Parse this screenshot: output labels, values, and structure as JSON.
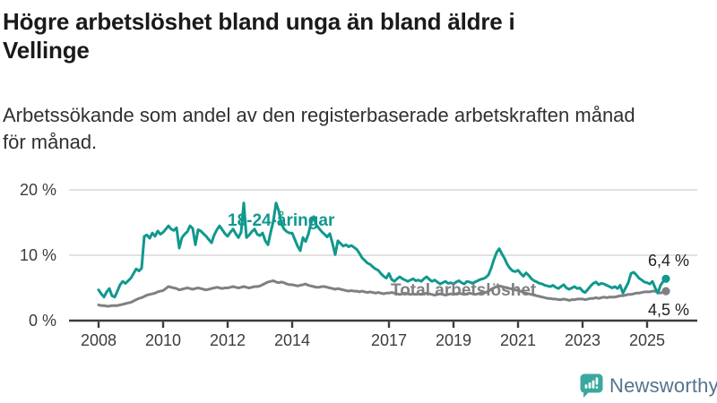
{
  "header": {
    "title": "Högre arbetslöshet bland unga än bland äldre i\nVellinge",
    "subtitle": "Arbetssökande som andel av den registerbaserade arbetskraften månad\nför månad."
  },
  "chart_data": {
    "type": "line",
    "x_start": {
      "year": 2008,
      "month": 1
    },
    "x_end": {
      "year": 2025,
      "month": 8
    },
    "points_per_year": 12,
    "ylim": [
      0,
      20
    ],
    "grid": "horizontal",
    "y_ticks": [
      {
        "value": 20,
        "label": "20 %"
      },
      {
        "value": 10,
        "label": "10 %"
      },
      {
        "value": 0,
        "label": "0 %"
      }
    ],
    "x_ticks": [
      {
        "year": 2008,
        "label": "2008"
      },
      {
        "year": 2010,
        "label": "2010"
      },
      {
        "year": 2012,
        "label": "2012"
      },
      {
        "year": 2014,
        "label": "2014"
      },
      {
        "year": 2017,
        "label": "2017"
      },
      {
        "year": 2019,
        "label": "2019"
      },
      {
        "year": 2021,
        "label": "2021"
      },
      {
        "year": 2023,
        "label": "2023"
      },
      {
        "year": 2025,
        "label": "2025"
      }
    ],
    "series": [
      {
        "id": "young",
        "name": "18-24-åringar",
        "color": "#10988E",
        "end_label": "6,4 %",
        "end_value": 6.4,
        "values": [
          4.7,
          4.1,
          3.6,
          4.4,
          4.9,
          3.8,
          3.6,
          4.5,
          5.5,
          6.0,
          5.7,
          6.1,
          6.5,
          7.2,
          7.9,
          7.6,
          8.0,
          12.9,
          13.1,
          12.6,
          13.4,
          12.9,
          13.7,
          13.2,
          13.5,
          14.0,
          14.5,
          14.0,
          13.8,
          14.2,
          11.1,
          12.7,
          13.2,
          13.6,
          14.5,
          14.1,
          11.6,
          13.9,
          13.7,
          13.3,
          12.9,
          12.4,
          11.9,
          13.1,
          13.9,
          14.5,
          13.9,
          13.3,
          12.9,
          13.5,
          14.0,
          13.3,
          12.7,
          13.5,
          18.0,
          12.7,
          13.1,
          13.6,
          14.0,
          13.2,
          13.0,
          13.4,
          12.2,
          11.6,
          13.5,
          15.2,
          18.0,
          16.8,
          14.8,
          14.0,
          13.6,
          13.4,
          13.4,
          12.4,
          11.4,
          10.7,
          12.7,
          12.1,
          13.2,
          14.9,
          15.9,
          14.6,
          14.1,
          13.6,
          13.2,
          12.8,
          13.3,
          11.8,
          10.1,
          12.2,
          11.8,
          11.4,
          11.6,
          11.3,
          11.5,
          11.2,
          10.9,
          10.3,
          9.6,
          9.2,
          8.8,
          8.6,
          8.2,
          7.9,
          7.7,
          7.2,
          6.8,
          6.5,
          7.2,
          6.3,
          6.0,
          6.4,
          6.7,
          6.4,
          6.2,
          6.0,
          6.2,
          6.4,
          6.1,
          6.2,
          6.0,
          6.4,
          6.7,
          6.3,
          6.0,
          6.2,
          5.9,
          5.6,
          5.8,
          6.0,
          5.7,
          5.8,
          5.6,
          5.9,
          6.1,
          5.8,
          5.6,
          6.0,
          5.9,
          5.7,
          5.9,
          6.1,
          6.3,
          6.4,
          6.6,
          7.0,
          8.0,
          9.3,
          10.4,
          11.0,
          10.2,
          9.5,
          8.6,
          8.0,
          7.6,
          7.5,
          7.7,
          7.2,
          6.8,
          7.3,
          6.9,
          6.4,
          6.1,
          5.9,
          5.7,
          5.6,
          5.4,
          5.3,
          5.2,
          5.4,
          5.1,
          4.9,
          5.2,
          5.5,
          5.0,
          4.8,
          5.0,
          5.2,
          4.9,
          5.0,
          4.5,
          4.3,
          4.8,
          5.3,
          5.7,
          5.9,
          5.5,
          5.7,
          5.6,
          5.4,
          5.2,
          5.0,
          5.2,
          4.9,
          5.4,
          4.2,
          5.0,
          5.8,
          7.2,
          7.4,
          7.0,
          6.5,
          6.2,
          5.9,
          5.8,
          5.6,
          6.0,
          5.0,
          4.2,
          5.4,
          6.0,
          6.4
        ]
      },
      {
        "id": "total",
        "name": "Total arbetslöshet",
        "color": "#7E8083",
        "end_label": "4,5 %",
        "end_value": 4.5,
        "values": [
          2.4,
          2.3,
          2.3,
          2.2,
          2.2,
          2.3,
          2.3,
          2.3,
          2.4,
          2.5,
          2.6,
          2.7,
          2.8,
          3.0,
          3.2,
          3.4,
          3.5,
          3.7,
          3.9,
          4.0,
          4.1,
          4.2,
          4.4,
          4.5,
          4.6,
          4.9,
          5.2,
          5.1,
          5.0,
          4.9,
          4.7,
          4.8,
          4.9,
          5.0,
          4.9,
          4.8,
          4.9,
          5.0,
          4.9,
          4.8,
          4.7,
          4.8,
          4.9,
          5.0,
          5.1,
          5.0,
          4.9,
          5.0,
          5.0,
          5.1,
          5.2,
          5.1,
          5.0,
          5.1,
          5.2,
          5.1,
          5.0,
          5.1,
          5.2,
          5.2,
          5.3,
          5.5,
          5.7,
          5.9,
          6.0,
          6.1,
          5.9,
          5.8,
          5.9,
          5.8,
          5.6,
          5.5,
          5.5,
          5.4,
          5.3,
          5.4,
          5.5,
          5.6,
          5.4,
          5.3,
          5.2,
          5.1,
          5.1,
          5.2,
          5.2,
          5.1,
          5.0,
          4.9,
          4.8,
          4.9,
          4.8,
          4.7,
          4.6,
          4.5,
          4.6,
          4.5,
          4.5,
          4.4,
          4.5,
          4.4,
          4.3,
          4.4,
          4.3,
          4.2,
          4.3,
          4.2,
          4.1,
          4.2,
          4.2,
          4.3,
          4.2,
          4.1,
          4.0,
          4.1,
          4.2,
          4.1,
          4.0,
          4.1,
          4.0,
          4.1,
          4.0,
          4.1,
          4.2,
          4.1,
          4.0,
          3.9,
          4.0,
          4.1,
          4.0,
          3.9,
          4.0,
          4.1,
          4.0,
          4.1,
          4.2,
          4.1,
          4.0,
          4.1,
          4.2,
          4.1,
          4.0,
          4.1,
          4.2,
          4.3,
          4.3,
          4.5,
          4.8,
          5.0,
          5.2,
          5.3,
          5.2,
          5.1,
          5.0,
          4.9,
          4.8,
          4.7,
          4.6,
          4.5,
          4.3,
          4.2,
          4.1,
          4.0,
          3.9,
          3.8,
          3.7,
          3.6,
          3.5,
          3.4,
          3.4,
          3.3,
          3.3,
          3.2,
          3.2,
          3.3,
          3.2,
          3.1,
          3.2,
          3.2,
          3.3,
          3.3,
          3.3,
          3.2,
          3.3,
          3.4,
          3.4,
          3.5,
          3.4,
          3.5,
          3.6,
          3.5,
          3.6,
          3.6,
          3.6,
          3.7,
          3.8,
          3.8,
          3.9,
          4.0,
          4.0,
          4.1,
          4.2,
          4.2,
          4.3,
          4.4,
          4.4,
          4.4,
          4.5,
          4.5,
          4.3,
          4.2,
          4.4,
          4.5
        ]
      }
    ]
  },
  "footer": {
    "brand": "Newsworthy",
    "brand_text_color": "#54738E",
    "brand_icon_color": "#3BA89E"
  },
  "colors": {
    "axis": "#3C3C3C",
    "grid": "#D9D9D9"
  }
}
